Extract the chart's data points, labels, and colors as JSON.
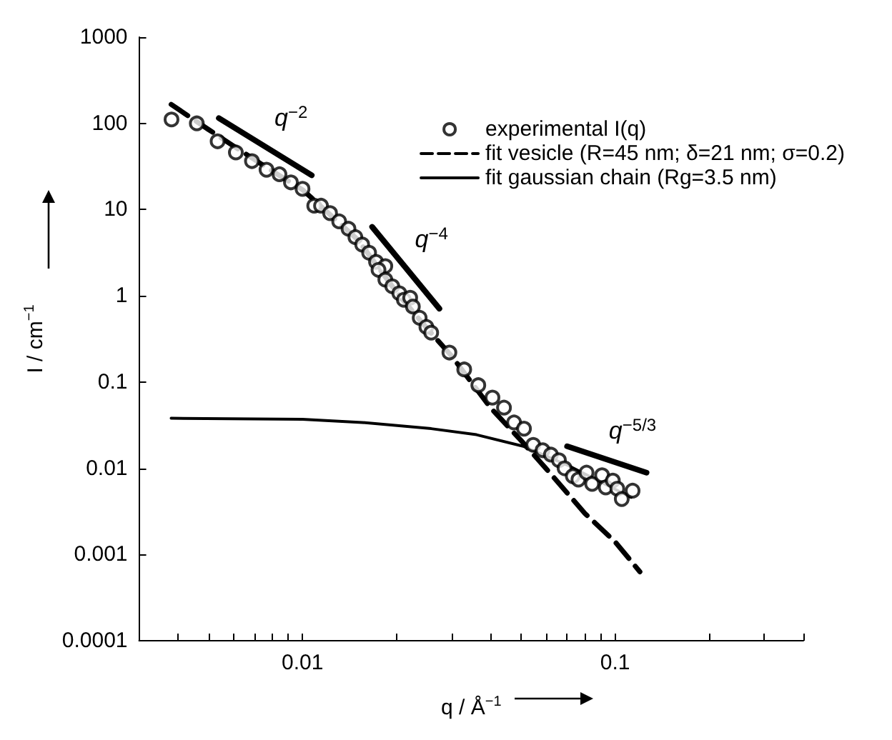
{
  "chart_data": {
    "type": "line",
    "xlabel": "q / Å$^{−1}$",
    "ylabel": "I / cm$^{−1}$",
    "xlim": [
      0.003,
      0.4
    ],
    "ylim": [
      0.0001,
      1000
    ],
    "xticks": [
      {
        "value": 0.004,
        "label": null
      },
      {
        "value": 0.005,
        "label": null
      },
      {
        "value": 0.006,
        "label": null
      },
      {
        "value": 0.007,
        "label": null
      },
      {
        "value": 0.008,
        "label": null
      },
      {
        "value": 0.009,
        "label": null
      },
      0.01,
      {
        "value": 0.02,
        "label": null
      },
      {
        "value": 0.03,
        "label": null
      },
      {
        "value": 0.04,
        "label": null
      },
      {
        "value": 0.05,
        "label": null
      },
      {
        "value": 0.06,
        "label": null
      },
      {
        "value": 0.07,
        "label": null
      },
      {
        "value": 0.08,
        "label": null
      },
      {
        "value": 0.09,
        "label": null
      },
      0.1,
      {
        "value": 0.2,
        "label": null
      },
      {
        "value": 0.3,
        "label": null
      },
      {
        "value": 0.4,
        "label": null
      }
    ],
    "yticks": [
      0.0001,
      0.001,
      0.01,
      0.1,
      1,
      10,
      100,
      1000
    ],
    "log": "xy",
    "grid": false,
    "legend": "top right",
    "series": [
      {
        "name": "experimental I(q)",
        "type": "scatter",
        "marker": "circle",
        "color": "#000000",
        "x": [
          0.00381,
          0.00459,
          0.00535,
          0.00612,
          0.00689,
          0.00767,
          0.00844,
          0.00918,
          0.01,
          0.0109,
          0.01146,
          0.01225,
          0.0131,
          0.01403,
          0.01476,
          0.01552,
          0.01633,
          0.01718,
          0.0184,
          0.0175,
          0.0184,
          0.01937,
          0.0204,
          0.0211,
          0.0221,
          0.02254,
          0.0237,
          0.0249,
          0.0258,
          0.0295,
          0.0329,
          0.0365,
          0.0405,
          0.0441,
          0.0475,
          0.0511,
          0.0547,
          0.0586,
          0.0623,
          0.0661,
          0.0689,
          0.0732,
          0.0763,
          0.081,
          0.0844,
          0.0908,
          0.0933,
          0.0983,
          0.1016,
          0.105,
          0.1137
        ],
        "values": [
          111,
          100,
          62,
          46,
          36.5,
          29,
          25.7,
          20.7,
          17.4,
          11.1,
          11.1,
          9.1,
          7.3,
          6.0,
          4.8,
          3.93,
          3.16,
          2.48,
          2.21,
          2.0,
          1.54,
          1.29,
          1.07,
          0.9,
          0.95,
          0.75,
          0.556,
          0.436,
          0.374,
          0.22,
          0.14,
          0.092,
          0.066,
          0.0505,
          0.034,
          0.0288,
          0.0187,
          0.0162,
          0.0144,
          0.0124,
          0.01,
          0.0081,
          0.0074,
          0.0089,
          0.0066,
          0.0083,
          0.006,
          0.0072,
          0.0058,
          0.0044,
          0.0055
        ]
      },
      {
        "name": "fit vesicle (R=45 nm; δ=21 nm; σ=0.2)",
        "line_style": "dashed",
        "color": "#000000",
        "x": [
          0.0038,
          0.005,
          0.006,
          0.008,
          0.01,
          0.015,
          0.02,
          0.025,
          0.03,
          0.04,
          0.05,
          0.06,
          0.08,
          0.1,
          0.12
        ],
        "values": [
          166,
          85,
          55,
          28,
          17,
          4.5,
          1.1,
          0.42,
          0.2,
          0.05,
          0.021,
          0.01,
          0.003,
          0.0014,
          0.00063
        ]
      },
      {
        "name": "fit gaussian chain (Rg=3.5 nm)",
        "line_style": "solid",
        "color": "#000000",
        "x": [
          0.0038,
          0.01,
          0.0155,
          0.0258,
          0.036,
          0.0508,
          0.071,
          0.1124
        ],
        "values": [
          0.038,
          0.037,
          0.034,
          0.0288,
          0.0245,
          0.018,
          0.0107,
          0.0046
        ]
      },
      {
        "line_style": "solid",
        "color": "#000000",
        "x": [
          0.0054,
          0.0107
        ],
        "values": [
          115,
          25
        ]
      },
      {
        "line_style": "solid",
        "color": "#000000",
        "x": [
          0.0167,
          0.0274
        ],
        "values": [
          6.3,
          0.71
        ]
      },
      {
        "line_style": "solid",
        "color": "#000000",
        "x": [
          0.0702,
          0.126
        ],
        "values": [
          0.018,
          0.0089
        ]
      }
    ],
    "annotations": [
      "q$^{−2}$",
      "q$^{−4}$",
      "q$^{−5/3}$"
    ]
  }
}
